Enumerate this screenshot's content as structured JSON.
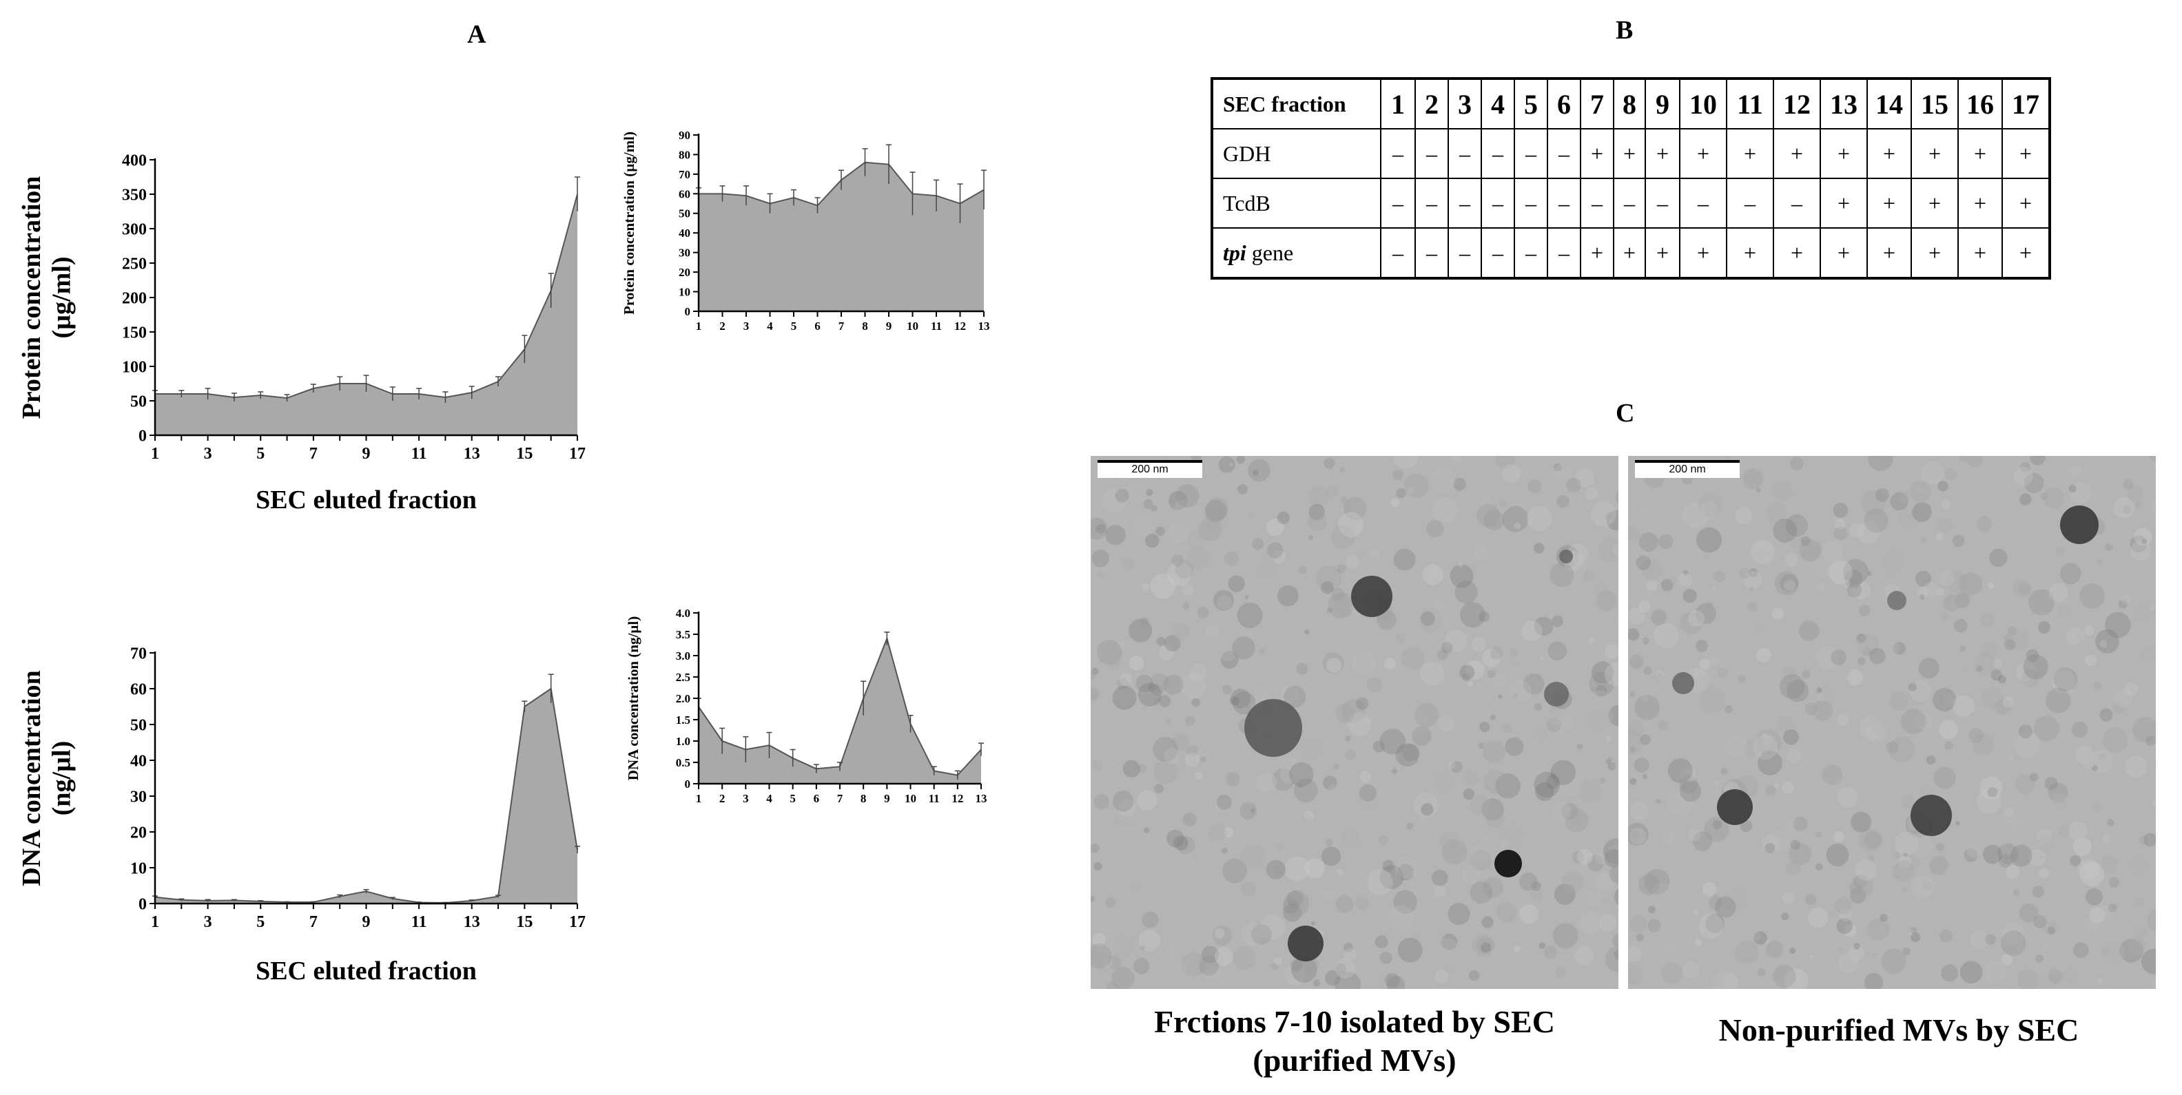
{
  "panels": {
    "a": "A",
    "b": "B",
    "c": "C"
  },
  "chart_data": [
    {
      "id": "protein_main",
      "type": "area",
      "x": [
        1,
        2,
        3,
        4,
        5,
        6,
        7,
        8,
        9,
        10,
        11,
        12,
        13,
        14,
        15,
        16,
        17
      ],
      "values": [
        60,
        60,
        60,
        55,
        58,
        54,
        68,
        75,
        75,
        60,
        60,
        55,
        62,
        78,
        125,
        210,
        350
      ],
      "errors": [
        5,
        5,
        8,
        6,
        5,
        5,
        6,
        10,
        12,
        10,
        8,
        8,
        9,
        7,
        20,
        25,
        25
      ],
      "xticks": [
        "1",
        "3",
        "5",
        "7",
        "9",
        "11",
        "13",
        "15",
        "17"
      ],
      "yticks": [
        "0",
        "50",
        "100",
        "150",
        "200",
        "250",
        "300",
        "350",
        "400"
      ],
      "ylim": [
        0,
        400
      ],
      "xlabel": "SEC eluted fraction",
      "ylabel": [
        "Protein concentration",
        "(µg/ml)"
      ],
      "fill_color": "#a9a9a9"
    },
    {
      "id": "protein_inset",
      "type": "area",
      "x": [
        1,
        2,
        3,
        4,
        5,
        6,
        7,
        8,
        9,
        10,
        11,
        12,
        13
      ],
      "values": [
        60,
        60,
        59,
        55,
        58,
        54,
        67,
        76,
        75,
        60,
        59,
        55,
        62
      ],
      "errors": [
        3,
        4,
        5,
        5,
        4,
        4,
        5,
        7,
        10,
        11,
        8,
        10,
        10
      ],
      "xticks": [
        "1",
        "2",
        "3",
        "4",
        "5",
        "6",
        "7",
        "8",
        "9",
        "10",
        "11",
        "12",
        "13"
      ],
      "yticks": [
        "0",
        "10",
        "20",
        "30",
        "40",
        "50",
        "60",
        "70",
        "80",
        "90"
      ],
      "ylim": [
        0,
        90
      ],
      "ylabel": "Protein concentration (µg/ml)",
      "fill_color": "#a9a9a9"
    },
    {
      "id": "dna_main",
      "type": "area",
      "x": [
        1,
        2,
        3,
        4,
        5,
        6,
        7,
        8,
        9,
        10,
        11,
        12,
        13,
        14,
        15,
        16,
        17
      ],
      "values": [
        1.8,
        1,
        0.8,
        0.9,
        0.6,
        0.4,
        0.4,
        2,
        3.4,
        1.4,
        0.3,
        0.2,
        0.8,
        2,
        55,
        60,
        15
      ],
      "errors": [
        0.3,
        0.3,
        0.3,
        0.2,
        0.2,
        0.1,
        0.1,
        0.4,
        0.5,
        0.3,
        0.1,
        0.1,
        0.2,
        0.3,
        1.5,
        4,
        1
      ],
      "xticks": [
        "1",
        "3",
        "5",
        "7",
        "9",
        "11",
        "13",
        "15",
        "17"
      ],
      "yticks": [
        "0",
        "10",
        "20",
        "30",
        "40",
        "50",
        "60",
        "70"
      ],
      "ylim": [
        0,
        70
      ],
      "xlabel": "SEC eluted fraction",
      "ylabel": [
        "DNA concentration",
        "(ng/µl)"
      ],
      "fill_color": "#a9a9a9"
    },
    {
      "id": "dna_inset",
      "type": "area",
      "x": [
        1,
        2,
        3,
        4,
        5,
        6,
        7,
        8,
        9,
        10,
        11,
        12,
        13
      ],
      "values": [
        1.8,
        1.0,
        0.8,
        0.9,
        0.6,
        0.35,
        0.4,
        2.0,
        3.4,
        1.4,
        0.3,
        0.2,
        0.8
      ],
      "errors": [
        0.2,
        0.3,
        0.3,
        0.3,
        0.2,
        0.1,
        0.1,
        0.4,
        0.15,
        0.2,
        0.1,
        0.1,
        0.15
      ],
      "xticks": [
        "1",
        "2",
        "3",
        "4",
        "5",
        "6",
        "7",
        "8",
        "9",
        "10",
        "11",
        "12",
        "13"
      ],
      "yticks": [
        "0",
        "0.5",
        "1.0",
        "1.5",
        "2.0",
        "2.5",
        "3.0",
        "3.5",
        "4.0"
      ],
      "ylim": [
        0,
        4
      ],
      "ylabel": "DNA concentration (ng/µl)",
      "fill_color": "#a9a9a9"
    },
    {
      "id": "table_b",
      "type": "table",
      "header_label": "SEC fraction",
      "columns": [
        "1",
        "2",
        "3",
        "4",
        "5",
        "6",
        "7",
        "8",
        "9",
        "10",
        "11",
        "12",
        "13",
        "14",
        "15",
        "16",
        "17"
      ],
      "rows": [
        {
          "label": "GDH",
          "italic_part": "",
          "suffix": "",
          "cells": [
            "–",
            "–",
            "–",
            "–",
            "–",
            "–",
            "+",
            "+",
            "+",
            "+",
            "+",
            "+",
            "+",
            "+",
            "+",
            "+",
            "+"
          ]
        },
        {
          "label": "TcdB",
          "italic_part": "",
          "suffix": "",
          "cells": [
            "–",
            "–",
            "–",
            "–",
            "–",
            "–",
            "–",
            "–",
            "–",
            "–",
            "–",
            "–",
            "+",
            "+",
            "+",
            "+",
            "+"
          ]
        },
        {
          "label": "",
          "italic_part": "tpi",
          "suffix": " gene",
          "cells": [
            "–",
            "–",
            "–",
            "–",
            "–",
            "–",
            "+",
            "+",
            "+",
            "+",
            "+",
            "+",
            "+",
            "+",
            "+",
            "+",
            "+"
          ]
        }
      ]
    }
  ],
  "micrographs": [
    {
      "scale_label": "200 nm",
      "caption": [
        "Frctions 7-10 isolated by SEC",
        "(purified MVs)"
      ]
    },
    {
      "scale_label": "200 nm",
      "caption": [
        "Non-purified MVs by SEC"
      ]
    }
  ]
}
